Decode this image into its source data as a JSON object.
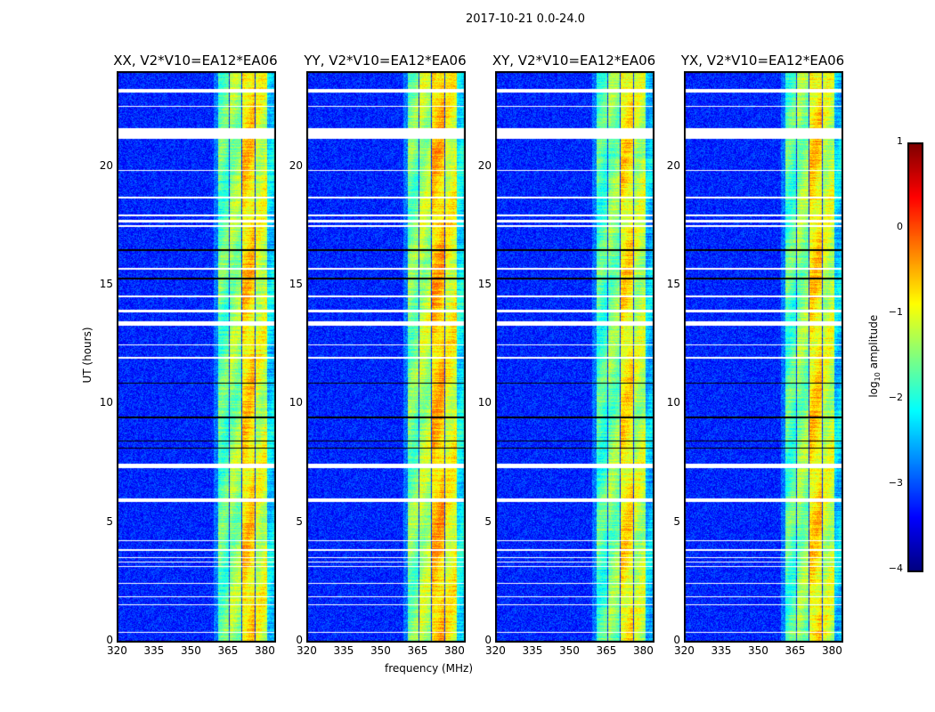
{
  "chart_data": {
    "type": "heatmap",
    "title": "2017-10-21 0.0-24.0",
    "xlabel": "frequency (MHz)",
    "ylabel": "UT (hours)",
    "xlim": [
      320,
      384
    ],
    "ylim": [
      0,
      24
    ],
    "xticks": [
      "320",
      "335",
      "350",
      "365",
      "380"
    ],
    "xtick_values": [
      320,
      335,
      350,
      365,
      380
    ],
    "yticks": [
      "0",
      "5",
      "10",
      "15",
      "20"
    ],
    "ytick_values": [
      0,
      5,
      10,
      15,
      20
    ],
    "panels": [
      {
        "title": "XX, V2*V10=EA12*EA06",
        "band_boost": 0.0
      },
      {
        "title": "YY, V2*V10=EA12*EA06",
        "band_boost": 0.15
      },
      {
        "title": "XY, V2*V10=EA12*EA06",
        "band_boost": -0.1
      },
      {
        "title": "YX, V2*V10=EA12*EA06",
        "band_boost": -0.05
      }
    ],
    "background_log_amplitude": -3.2,
    "rfi_bands_mhz": [
      {
        "range": [
          360.5,
          365
        ],
        "level": -1.7
      },
      {
        "range": [
          365.5,
          370
        ],
        "level": -1.4
      },
      {
        "range": [
          370.5,
          375.5
        ],
        "level": -0.7
      },
      {
        "range": [
          376,
          380.5
        ],
        "level": -1.1
      },
      {
        "range": [
          380.5,
          384
        ],
        "level": -2.3
      }
    ],
    "flagged_hours_white": [
      [
        23.15,
        23.3
      ],
      [
        22.55,
        22.6
      ],
      [
        21.2,
        21.65
      ],
      [
        19.85,
        19.9
      ],
      [
        18.7,
        18.75
      ],
      [
        17.95,
        18.0
      ],
      [
        17.7,
        17.8
      ],
      [
        17.5,
        17.55
      ],
      [
        15.7,
        15.75
      ],
      [
        14.55,
        14.6
      ],
      [
        13.9,
        14.0
      ],
      [
        13.35,
        13.5
      ],
      [
        12.5,
        12.55
      ],
      [
        11.95,
        12.0
      ],
      [
        7.35,
        7.5
      ],
      [
        5.9,
        6.05
      ],
      [
        4.25,
        4.3
      ],
      [
        3.85,
        3.9
      ],
      [
        3.55,
        3.6
      ],
      [
        3.35,
        3.4
      ],
      [
        3.15,
        3.2
      ],
      [
        2.45,
        2.5
      ],
      [
        1.9,
        1.95
      ],
      [
        1.55,
        1.6
      ],
      [
        0.4,
        0.45
      ]
    ],
    "flagged_hours_black": [
      [
        16.5,
        16.55
      ],
      [
        15.3,
        15.35
      ],
      [
        10.9,
        10.95
      ],
      [
        9.45,
        9.5
      ],
      [
        8.45,
        8.5
      ],
      [
        8.15,
        8.2
      ]
    ],
    "colorbar": {
      "label": "log10 amplitude",
      "range": [
        -4,
        1
      ],
      "ticks": [
        "1",
        "0",
        "−1",
        "−2",
        "−3",
        "−4"
      ],
      "tick_values": [
        1,
        0,
        -1,
        -2,
        -3,
        -4
      ],
      "colormap": "jet"
    }
  }
}
